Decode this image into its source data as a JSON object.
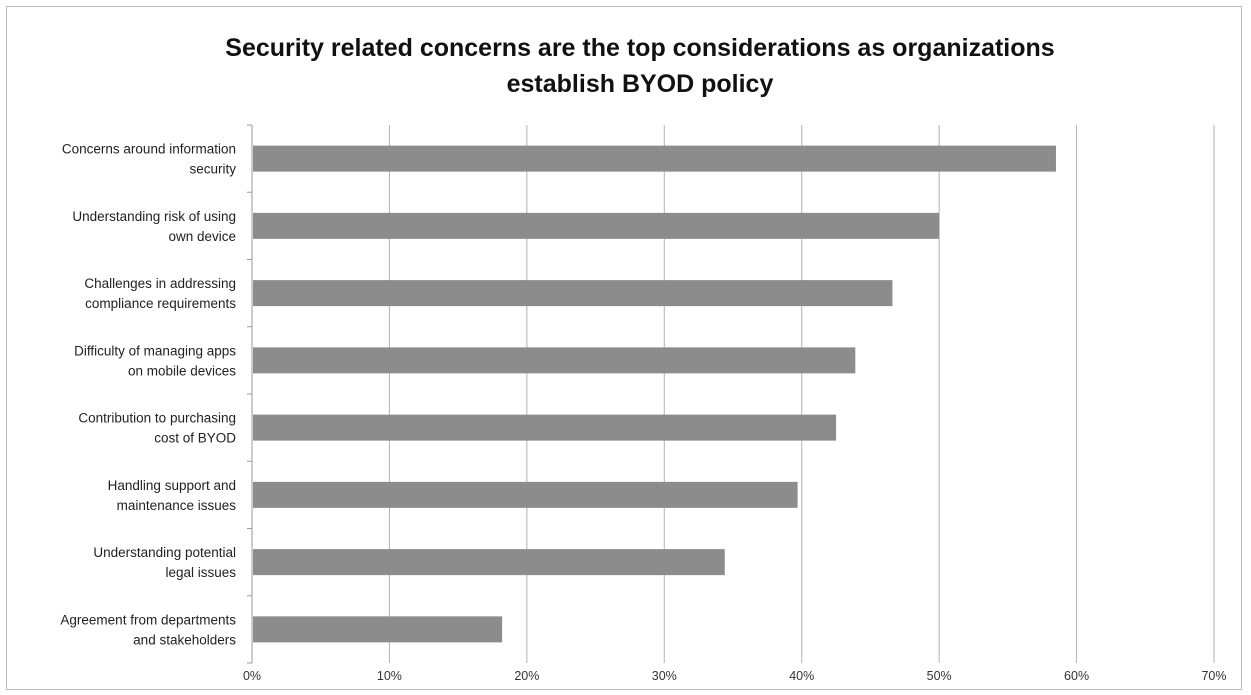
{
  "chart_data": {
    "type": "bar",
    "orientation": "horizontal",
    "title_lines": [
      "Security related concerns are the top considerations as organizations",
      "establish BYOD policy"
    ],
    "categories": [
      [
        "Concerns around information",
        "security"
      ],
      [
        "Understanding risk of using",
        "own device"
      ],
      [
        "Challenges in addressing",
        "compliance requirements"
      ],
      [
        "Difficulty of managing apps",
        "on mobile devices"
      ],
      [
        "Contribution to purchasing",
        "cost of BYOD"
      ],
      [
        "Handling support and",
        "maintenance issues"
      ],
      [
        "Understanding  potential",
        "legal issues"
      ],
      [
        "Agreement from departments",
        "and stakeholders"
      ]
    ],
    "values": [
      0.585,
      0.5,
      0.466,
      0.439,
      0.425,
      0.397,
      0.344,
      0.182
    ],
    "xlim": [
      0,
      0.7
    ],
    "xticks": [
      0,
      0.1,
      0.2,
      0.3,
      0.4,
      0.5,
      0.6,
      0.7
    ],
    "xtick_labels": [
      "0%",
      "10%",
      "20%",
      "30%",
      "40%",
      "50%",
      "60%",
      "70%"
    ],
    "grid": true,
    "bar_color": "#8c8c8c",
    "grid_color": "#b3b3b3"
  }
}
